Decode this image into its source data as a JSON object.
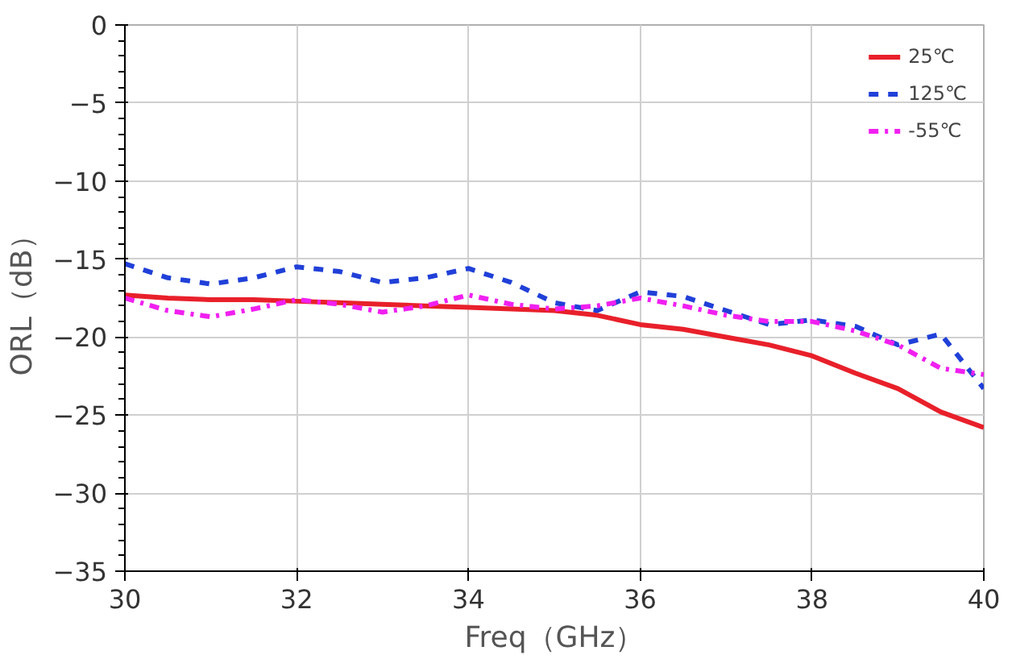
{
  "chart_data": {
    "type": "line",
    "xlabel": "Freq（GHz）",
    "ylabel": "ORL（dB）",
    "x": [
      30,
      30.5,
      31,
      31.5,
      32,
      32.5,
      33,
      33.5,
      34,
      34.5,
      35,
      35.5,
      36,
      36.5,
      37,
      37.5,
      38,
      38.5,
      39,
      39.5,
      40
    ],
    "series": [
      {
        "name": "25℃",
        "color": "#e8202a",
        "line_style": "solid",
        "values": [
          -17.3,
          -17.5,
          -17.6,
          -17.6,
          -17.7,
          -17.8,
          -17.9,
          -18.0,
          -18.1,
          -18.2,
          -18.3,
          -18.6,
          -19.2,
          -19.5,
          -20.0,
          -20.5,
          -21.2,
          -22.3,
          -23.3,
          -24.8,
          -25.8
        ]
      },
      {
        "name": "125℃",
        "color": "#2040d8",
        "line_style": "dashed",
        "values": [
          -15.3,
          -16.2,
          -16.6,
          -16.2,
          -15.5,
          -15.8,
          -16.5,
          -16.2,
          -15.6,
          -16.5,
          -17.8,
          -18.3,
          -17.1,
          -17.4,
          -18.3,
          -19.2,
          -18.9,
          -19.3,
          -20.5,
          -19.8,
          -23.3
        ]
      },
      {
        "name": "-55℃",
        "color": "#f020f0",
        "line_style": "dashdot",
        "values": [
          -17.5,
          -18.3,
          -18.7,
          -18.2,
          -17.6,
          -17.9,
          -18.4,
          -18.0,
          -17.3,
          -17.9,
          -18.2,
          -18.0,
          -17.5,
          -18.0,
          -18.6,
          -19.0,
          -19.0,
          -19.6,
          -20.5,
          -22.0,
          -22.4
        ]
      }
    ],
    "xlim": [
      30,
      40
    ],
    "xticks": [
      30,
      32,
      34,
      36,
      38,
      40
    ],
    "ylim": [
      -35,
      0
    ],
    "yticks": [
      -35,
      -30,
      -25,
      -20,
      -15,
      -10,
      -5,
      0
    ],
    "grid": true,
    "legend": "top right"
  }
}
